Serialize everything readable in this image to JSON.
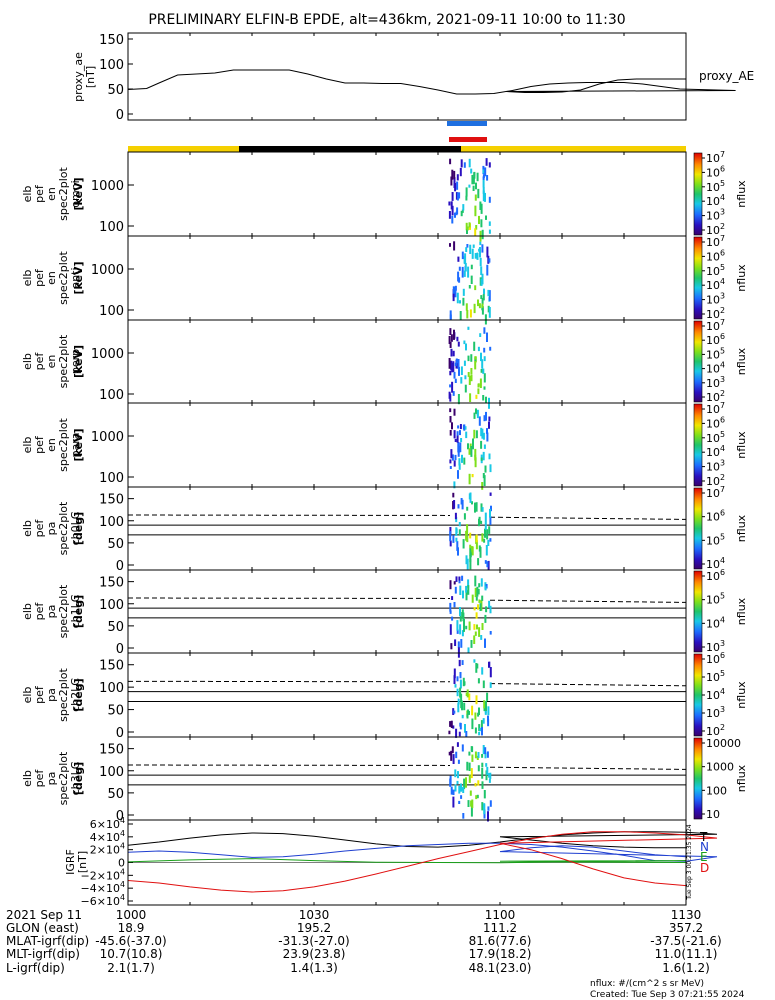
{
  "title": "PRELIMINARY ELFIN-B EPDE, alt=436km, 2021-09-11 10:00 to 11:30",
  "colors": {
    "bar_yellow": "#f5d000",
    "bar_black": "#000000",
    "blue_bar": "#1e6fe0",
    "red_bar": "#e01010",
    "T": "#000000",
    "N": "#1f3fd0",
    "E": "#1aa01a",
    "D": "#e01010"
  },
  "chart_data": [
    {
      "type": "line",
      "id": "proxy_ae",
      "ylabel": "proxy_ae [nT]",
      "legend": "proxy_AE",
      "ylim": [
        0,
        150
      ],
      "yticks": [
        "150",
        "100",
        "50",
        "0"
      ],
      "x": [
        1000,
        1003,
        1005,
        1008,
        1011,
        1014,
        1017,
        1020,
        1023,
        1026,
        1029,
        1032,
        1035,
        1038,
        1041,
        1044,
        1047,
        1050,
        1053,
        1056,
        1059,
        1062,
        1065,
        1068,
        1071,
        1074,
        1077,
        1080,
        1083,
        1086,
        1089,
        1092,
        1095,
        1098,
        1101,
        1104,
        1107,
        1110,
        1113,
        1116,
        1119,
        1122,
        1125,
        1128,
        1130
      ],
      "values": [
        49,
        51,
        62,
        78,
        80,
        82,
        88,
        88,
        88,
        88,
        80,
        70,
        62,
        62,
        61,
        61,
        55,
        48,
        40,
        40,
        41,
        47,
        55,
        60,
        62,
        63,
        63,
        63,
        60,
        55,
        50,
        49,
        48,
        47,
        45,
        43,
        43,
        44,
        48,
        60,
        68,
        70,
        70,
        70,
        70
      ]
    },
    {
      "type": "heatmap",
      "id": "omni",
      "labels": [
        "elb",
        "pef",
        "en",
        "spec2plot",
        "omni",
        "[keV]"
      ],
      "yticks": [
        "1000",
        "100"
      ],
      "cbar_ticks": [
        "10^7",
        "10^6",
        "10^5",
        "10^4",
        "10^3",
        "10^2"
      ],
      "cbar_label": "nflux"
    },
    {
      "type": "heatmap",
      "id": "anti",
      "labels": [
        "elb",
        "pef",
        "en",
        "spec2plot",
        "anti",
        "[keV]"
      ],
      "yticks": [
        "1000",
        "100"
      ],
      "cbar_ticks": [
        "10^7",
        "10^6",
        "10^5",
        "10^4",
        "10^3",
        "10^2"
      ],
      "cbar_label": "nflux"
    },
    {
      "type": "heatmap",
      "id": "perp",
      "labels": [
        "elb",
        "pef",
        "en",
        "spec2plot",
        "perp",
        "[keV]"
      ],
      "yticks": [
        "1000",
        "100"
      ],
      "cbar_ticks": [
        "10^7",
        "10^6",
        "10^5",
        "10^4",
        "10^3",
        "10^2"
      ],
      "cbar_label": "nflux"
    },
    {
      "type": "heatmap",
      "id": "para",
      "labels": [
        "elb",
        "pef",
        "en",
        "spec2plot",
        "para",
        "[keV]"
      ],
      "yticks": [
        "1000",
        "100"
      ],
      "cbar_ticks": [
        "10^7",
        "10^6",
        "10^5",
        "10^4",
        "10^3",
        "10^2"
      ],
      "cbar_label": "nflux"
    },
    {
      "type": "heatmap",
      "id": "ch0",
      "labels": [
        "elb",
        "pef",
        "pa",
        "spec2plot",
        "ch0LC",
        "[deg]"
      ],
      "yticks": [
        "150",
        "100",
        "50",
        "0"
      ],
      "cbar_ticks": [
        "10^7",
        "10^6",
        "10^5",
        "10^4"
      ],
      "cbar_label": "nflux"
    },
    {
      "type": "heatmap",
      "id": "ch1",
      "labels": [
        "elb",
        "pef",
        "pa",
        "spec2plot",
        "ch1LC",
        "[deg]"
      ],
      "yticks": [
        "150",
        "100",
        "50",
        "0"
      ],
      "cbar_ticks": [
        "10^6",
        "10^5",
        "10^4",
        "10^3"
      ],
      "cbar_label": "nflux"
    },
    {
      "type": "heatmap",
      "id": "ch2",
      "labels": [
        "elb",
        "pef",
        "pa",
        "spec2plot",
        "ch2LC",
        "[deg]"
      ],
      "yticks": [
        "150",
        "100",
        "50",
        "0"
      ],
      "cbar_ticks": [
        "10^6",
        "10^5",
        "10^4",
        "10^3",
        "10^2"
      ],
      "cbar_label": "nflux"
    },
    {
      "type": "heatmap",
      "id": "ch3",
      "labels": [
        "elb",
        "pef",
        "pa",
        "spec2plot",
        "ch3LC",
        "[deg]"
      ],
      "yticks": [
        "150",
        "100",
        "50",
        "0"
      ],
      "cbar_ticks": [
        "10000",
        "1000",
        "100",
        "10"
      ],
      "cbar_label": "nflux"
    },
    {
      "type": "line",
      "id": "igrf",
      "ylabel": "IGRF [nT]",
      "ylim": [
        -60000,
        60000
      ],
      "yticks": [
        "6×10^4",
        "4×10^4",
        "2×10^4",
        "0",
        "−2×10^4",
        "−4×10^4",
        "−6×10^4"
      ],
      "series": [
        {
          "name": "T",
          "color": "#000000",
          "x": [
            1000,
            1005,
            1010,
            1015,
            1020,
            1025,
            1030,
            1035,
            1040,
            1045,
            1050,
            1055,
            1060,
            1065,
            1070,
            1075,
            1080,
            1085,
            1090,
            1095,
            1100,
            1105,
            1110,
            1115,
            1120,
            1125,
            1130
          ],
          "values": [
            27000,
            32000,
            38000,
            43000,
            46000,
            45000,
            41000,
            35000,
            29000,
            25000,
            24000,
            27000,
            32000,
            38000,
            43000,
            46000,
            48000,
            48000,
            47000,
            44000,
            40000,
            35000,
            30000,
            26000,
            24000,
            23000,
            23000
          ]
        },
        {
          "name": "N",
          "color": "#1f3fd0",
          "x": [
            1000,
            1005,
            1010,
            1015,
            1020,
            1025,
            1030,
            1035,
            1040,
            1045,
            1050,
            1055,
            1060,
            1065,
            1070,
            1075,
            1080,
            1085,
            1090,
            1095,
            1100,
            1105,
            1110,
            1115,
            1120,
            1125,
            1130
          ],
          "values": [
            16000,
            18000,
            16000,
            12000,
            8000,
            9000,
            13000,
            18000,
            22000,
            26000,
            28000,
            30000,
            30000,
            28000,
            24000,
            18000,
            11000,
            3000,
            2000,
            9000,
            17000,
            23000,
            26000,
            24000,
            18000,
            12000,
            9000
          ]
        },
        {
          "name": "E",
          "color": "#1aa01a",
          "x": [
            1000,
            1010,
            1020,
            1030,
            1040,
            1050,
            1060,
            1070,
            1080,
            1090,
            1100,
            1110,
            1120,
            1130
          ],
          "values": [
            1000,
            4000,
            6000,
            3000,
            500,
            0,
            -500,
            1000,
            2000,
            3000,
            2000,
            1000,
            500,
            0
          ]
        },
        {
          "name": "D",
          "color": "#e01010",
          "x": [
            1000,
            1005,
            1010,
            1015,
            1020,
            1025,
            1030,
            1035,
            1040,
            1045,
            1050,
            1055,
            1060,
            1065,
            1070,
            1075,
            1080,
            1085,
            1090,
            1095,
            1100,
            1105,
            1110,
            1115,
            1120,
            1125,
            1130
          ],
          "values": [
            -28000,
            -32000,
            -38000,
            -43000,
            -46000,
            -44000,
            -38000,
            -29000,
            -18000,
            -6000,
            6000,
            17000,
            28000,
            37000,
            44000,
            48000,
            48000,
            46000,
            43000,
            38000,
            30000,
            20000,
            6000,
            -10000,
            -24000,
            -32000,
            -36000
          ]
        }
      ]
    }
  ],
  "hist_note": "Tue Sep  3 00:21:35 2024",
  "xaxis": {
    "ticks": [
      "1000",
      "1030",
      "1100",
      "1130"
    ],
    "rows": [
      {
        "label": "2021 Sep 11",
        "vals": [
          "",
          "",
          "",
          ""
        ]
      },
      {
        "label": "GLON (east)",
        "vals": [
          "18.9",
          "195.2",
          "111.2",
          "357.2"
        ]
      },
      {
        "label": "MLAT-igrf(dip)",
        "vals": [
          "-45.6(-37.0)",
          "-31.3(-27.0)",
          "81.6(77.6)",
          "-37.5(-21.6)"
        ]
      },
      {
        "label": "MLT-igrf(dip)",
        "vals": [
          "10.7(10.8)",
          "23.9(23.8)",
          "17.9(18.2)",
          "11.0(11.1)"
        ]
      },
      {
        "label": "L-igrf(dip)",
        "vals": [
          "2.1(1.7)",
          "1.4(1.3)",
          "48.1(23.0)",
          "1.6(1.2)"
        ]
      }
    ]
  },
  "footer": {
    "units": "nflux: #/(cm^2 s sr MeV)",
    "created": "Created: Tue Sep  3 07:21:55 2024"
  }
}
